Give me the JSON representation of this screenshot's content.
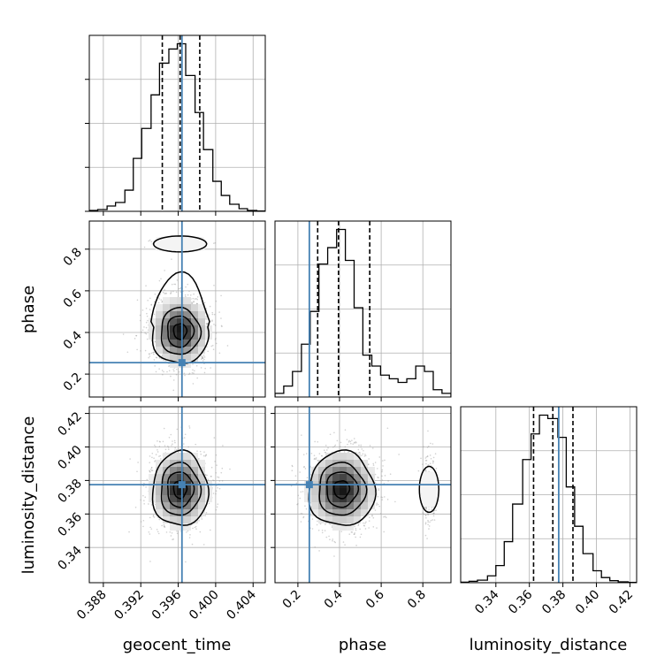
{
  "chart_data": {
    "type": "corner",
    "parameters": [
      "geocent_time",
      "phase",
      "luminosity_distance"
    ],
    "axis_labels": {
      "x": [
        "geocent_time",
        "phase",
        "luminosity_distance"
      ],
      "y": [
        "phase",
        "luminosity_distance"
      ]
    },
    "ranges": {
      "geocent_time": [
        0.3865,
        0.4053
      ],
      "phase": [
        0.09,
        0.935
      ],
      "luminosity_distance": [
        0.319,
        0.424
      ]
    },
    "ticks": {
      "geocent_time": [
        0.388,
        0.392,
        0.396,
        0.4,
        0.404
      ],
      "phase": [
        0.2,
        0.4,
        0.6,
        0.8
      ],
      "luminosity_distance": [
        0.34,
        0.36,
        0.38,
        0.4,
        0.42
      ]
    },
    "tick_labels": {
      "geocent_time": [
        "0.388",
        "0.392",
        "0.396",
        "0.400",
        "0.404"
      ],
      "phase": [
        "0.2",
        "0.4",
        "0.6",
        "0.8"
      ],
      "luminosity_distance": [
        "0.34",
        "0.36",
        "0.38",
        "0.40",
        "0.42"
      ]
    },
    "truths": {
      "geocent_time": 0.3964,
      "phase": 0.255,
      "luminosity_distance": 0.3775
    },
    "quantiles": {
      "geocent_time": [
        0.3943,
        0.3962,
        0.3983
      ],
      "phase": [
        0.295,
        0.395,
        0.545
      ],
      "luminosity_distance": [
        0.3625,
        0.374,
        0.386
      ]
    },
    "histograms": {
      "geocent_time": {
        "edges": [
          0.3865,
          0.3874,
          0.3884,
          0.3893,
          0.3903,
          0.3912,
          0.3921,
          0.3931,
          0.394,
          0.395,
          0.3959,
          0.3968,
          0.3978,
          0.3987,
          0.3997,
          0.4006,
          0.4015,
          0.4025,
          0.4034,
          0.4044,
          0.4053
        ],
        "counts": [
          0.5,
          1,
          3,
          5,
          12,
          30,
          47,
          66,
          84,
          92,
          95,
          77,
          56,
          35,
          17,
          9,
          4,
          1.5,
          0.5,
          0.2
        ]
      },
      "phase": {
        "edges": [
          0.09,
          0.132,
          0.174,
          0.217,
          0.259,
          0.301,
          0.343,
          0.386,
          0.428,
          0.47,
          0.512,
          0.555,
          0.597,
          0.639,
          0.681,
          0.723,
          0.766,
          0.808,
          0.85,
          0.892,
          0.935
        ],
        "counts": [
          2,
          6,
          14,
          29,
          47,
          73,
          82,
          92,
          75,
          49,
          23,
          17,
          12,
          10,
          8,
          10,
          17,
          14,
          4,
          2
        ]
      },
      "luminosity_distance": {
        "edges": [
          0.319,
          0.324,
          0.329,
          0.335,
          0.34,
          0.345,
          0.35,
          0.356,
          0.361,
          0.366,
          0.371,
          0.377,
          0.382,
          0.387,
          0.392,
          0.398,
          0.403,
          0.408,
          0.413,
          0.419,
          0.424
        ],
        "counts": [
          0.3,
          0.8,
          1.5,
          4,
          10,
          24,
          46,
          72,
          87,
          98,
          96,
          85,
          56,
          33,
          17,
          7,
          3,
          1.2,
          0.5,
          0.2
        ]
      }
    },
    "samples_2d": [
      {
        "x": "geocent_time",
        "y": "phase",
        "center": [
          0.3962,
          0.405
        ],
        "spread": [
          0.0014,
          0.075
        ],
        "secondary_mode": [
          0.3962,
          0.825
        ]
      },
      {
        "x": "geocent_time",
        "y": "luminosity_distance",
        "center": [
          0.3962,
          0.3747
        ],
        "spread": [
          0.0014,
          0.0105
        ]
      },
      {
        "x": "phase",
        "y": "luminosity_distance",
        "center": [
          0.41,
          0.3747
        ],
        "spread": [
          0.075,
          0.0105
        ],
        "secondary_mode": [
          0.83,
          0.3747
        ]
      }
    ],
    "colors": {
      "truth": "#4682b4",
      "hist": "#000000",
      "grid": "#b0b0b0",
      "points": "#9a9a9a",
      "density_dark": "#1a1a1a"
    },
    "grid": true
  }
}
